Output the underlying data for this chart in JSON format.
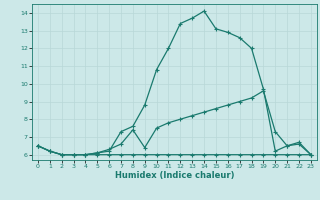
{
  "line1_x": [
    0,
    1,
    2,
    3,
    4,
    5,
    6,
    7,
    8,
    9,
    10,
    11,
    12,
    13,
    14,
    15,
    16,
    17,
    18,
    19,
    20,
    21,
    22,
    23
  ],
  "line1_y": [
    6.5,
    6.2,
    6.0,
    6.0,
    6.0,
    6.1,
    6.2,
    7.3,
    7.6,
    8.8,
    10.8,
    12.0,
    13.4,
    13.7,
    14.1,
    13.1,
    12.9,
    12.6,
    12.0,
    9.7,
    6.2,
    6.5,
    6.6,
    6.0
  ],
  "line2_x": [
    0,
    1,
    2,
    3,
    4,
    5,
    6,
    7,
    8,
    9,
    10,
    11,
    12,
    13,
    14,
    15,
    16,
    17,
    18,
    19,
    20,
    21,
    22,
    23
  ],
  "line2_y": [
    6.5,
    6.2,
    6.0,
    6.0,
    6.0,
    6.1,
    6.3,
    6.6,
    7.4,
    6.4,
    7.5,
    7.8,
    8.0,
    8.2,
    8.4,
    8.6,
    8.8,
    9.0,
    9.2,
    9.6,
    7.3,
    6.5,
    6.7,
    6.0
  ],
  "line3_x": [
    0,
    1,
    2,
    3,
    4,
    5,
    6,
    7,
    8,
    9,
    10,
    11,
    12,
    13,
    14,
    15,
    16,
    17,
    18,
    19,
    20,
    21,
    22,
    23
  ],
  "line3_y": [
    6.5,
    6.2,
    6.0,
    6.0,
    6.0,
    6.0,
    6.0,
    6.0,
    6.0,
    6.0,
    6.0,
    6.0,
    6.0,
    6.0,
    6.0,
    6.0,
    6.0,
    6.0,
    6.0,
    6.0,
    6.0,
    6.0,
    6.0,
    6.0
  ],
  "line_color": "#1a7a6e",
  "bg_color": "#cce8e8",
  "grid_color": "#b8d8d8",
  "xlabel": "Humidex (Indice chaleur)",
  "xlim": [
    -0.5,
    23.5
  ],
  "ylim": [
    5.7,
    14.5
  ],
  "yticks": [
    6,
    7,
    8,
    9,
    10,
    11,
    12,
    13,
    14
  ],
  "xticks": [
    0,
    1,
    2,
    3,
    4,
    5,
    6,
    7,
    8,
    9,
    10,
    11,
    12,
    13,
    14,
    15,
    16,
    17,
    18,
    19,
    20,
    21,
    22,
    23
  ],
  "marker": "+",
  "markersize": 3,
  "linewidth": 0.9
}
